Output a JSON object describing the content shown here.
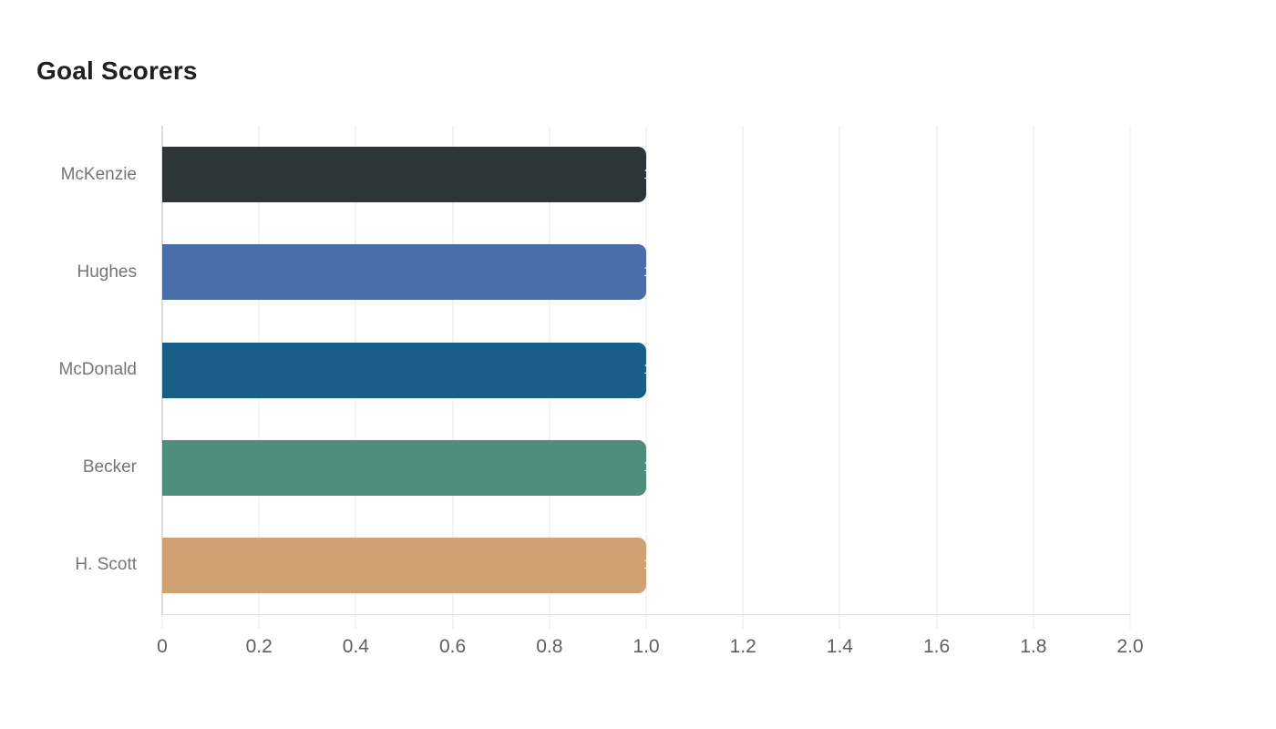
{
  "title": "Goal Scorers",
  "chart_data": {
    "type": "bar",
    "orientation": "horizontal",
    "title": "Goal Scorers",
    "xlabel": "",
    "ylabel": "",
    "categories": [
      "McKenzie",
      "Hughes",
      "McDonald",
      "Becker",
      "H. Scott"
    ],
    "values": [
      1,
      1,
      1,
      1,
      1
    ],
    "bar_labels": [
      "1",
      "1",
      "1",
      "1",
      "1"
    ],
    "bar_colors": [
      "#2c3537",
      "#4a6fa8",
      "#185e87",
      "#4f8e7c",
      "#d0a273"
    ],
    "xlim": [
      0,
      2.0
    ],
    "xticks": [
      0,
      0.2,
      0.4,
      0.6,
      0.8,
      1.0,
      1.2,
      1.4,
      1.6,
      1.8,
      2.0
    ],
    "xtick_labels": [
      "0",
      "0.2",
      "0.4",
      "0.6",
      "0.8",
      "1.0",
      "1.2",
      "1.4",
      "1.6",
      "1.8",
      "2.0"
    ],
    "grid": "vertical-only",
    "legend": false,
    "background": "#ffffff",
    "title_color": "#212121",
    "category_label_color": "#757575",
    "tick_label_color": "#5f5f5f",
    "value_label_color": "#ffffff"
  }
}
